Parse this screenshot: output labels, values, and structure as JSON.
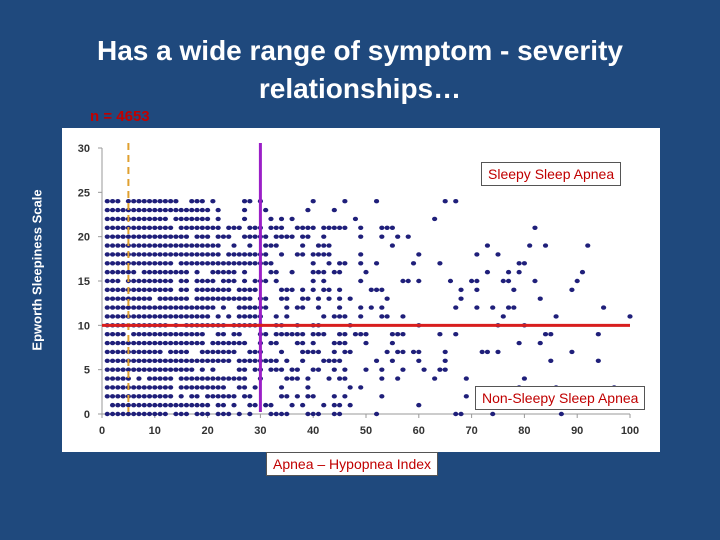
{
  "title_line1": "Has a wide range of symptom - severity",
  "title_line2": "relationships…",
  "n_label": "n = 4653",
  "chart_data": {
    "type": "scatter",
    "xlabel": "Apnea – Hypopnea Index",
    "ylabel": "Epworth Sleepiness Scale",
    "xlim": [
      0,
      100
    ],
    "ylim": [
      0,
      30
    ],
    "x_ticks": [
      0,
      10,
      20,
      30,
      40,
      50,
      60,
      70,
      80,
      90,
      100
    ],
    "y_ticks": [
      0,
      5,
      10,
      15,
      20,
      25,
      30
    ],
    "reference_lines": [
      {
        "orientation": "vertical",
        "x": 5,
        "style": "dashed",
        "color": "#e0a030"
      },
      {
        "orientation": "vertical",
        "x": 30,
        "style": "solid",
        "color": "#9b1fc7"
      },
      {
        "orientation": "horizontal",
        "y": 10,
        "x_from": 0,
        "x_to": 100,
        "style": "solid",
        "color": "#d81e1e"
      }
    ],
    "annotations": [
      "Sleepy Sleep Apnea",
      "Non-Sleepy Sleep Apnea"
    ],
    "point_color": "#1f1f7a",
    "density_note": "points are dense at low AHI for all Epworth values 0–24 and become sparse toward AHI 100"
  }
}
